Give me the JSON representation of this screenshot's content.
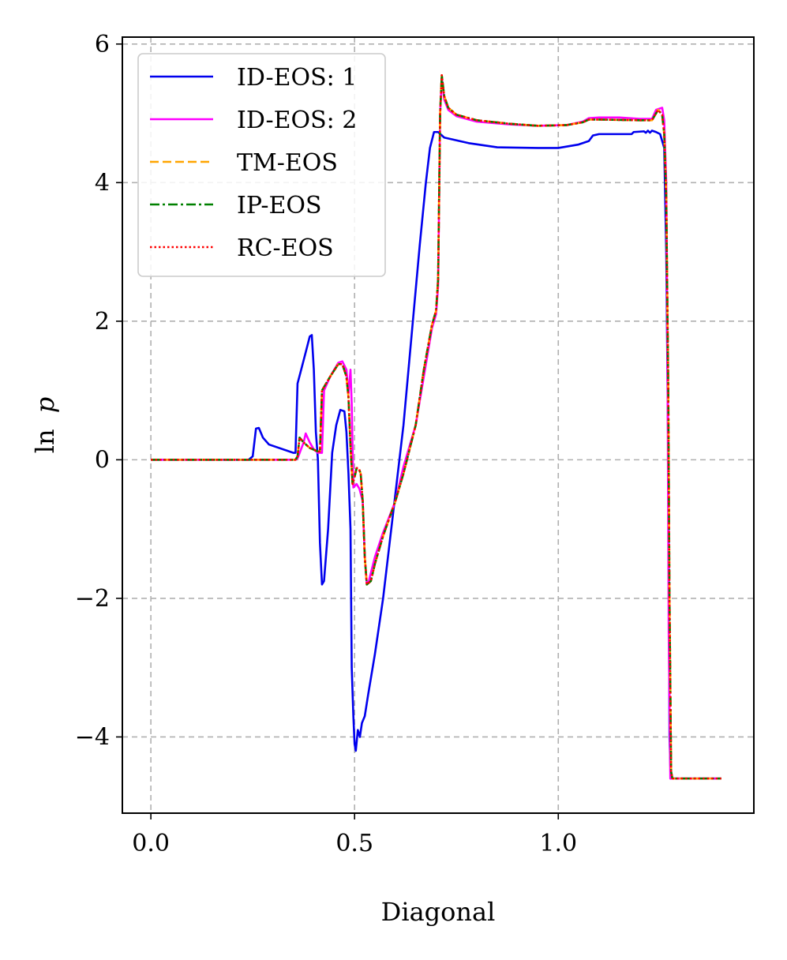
{
  "chart_data": {
    "type": "line",
    "title": "",
    "xlabel": "Diagonal",
    "ylabel_parts": {
      "fn": "ln",
      "var": "p"
    },
    "xlim": [
      -0.07,
      1.48
    ],
    "ylim": [
      -5.1,
      6.1
    ],
    "xticks": [
      0.0,
      0.5,
      1.0
    ],
    "xtick_labels": [
      "0.0",
      "0.5",
      "1.0"
    ],
    "yticks": [
      -4,
      -2,
      0,
      2,
      4,
      6
    ],
    "ytick_labels": [
      "−4",
      "−2",
      "0",
      "2",
      "4",
      "6"
    ],
    "grid": true,
    "legend_position": "upper-left",
    "series": [
      {
        "name": "ID-EOS: 1",
        "color": "#0000ee",
        "style": "solid",
        "points": [
          [
            0,
            0
          ],
          [
            0.24,
            0
          ],
          [
            0.25,
            0.05
          ],
          [
            0.258,
            0.45
          ],
          [
            0.265,
            0.46
          ],
          [
            0.275,
            0.32
          ],
          [
            0.29,
            0.22
          ],
          [
            0.35,
            0.1
          ],
          [
            0.355,
            0.1
          ],
          [
            0.36,
            1.1
          ],
          [
            0.38,
            1.55
          ],
          [
            0.39,
            1.78
          ],
          [
            0.395,
            1.8
          ],
          [
            0.4,
            1.3
          ],
          [
            0.405,
            0.4
          ],
          [
            0.41,
            0.0
          ],
          [
            0.415,
            -1.2
          ],
          [
            0.42,
            -1.8
          ],
          [
            0.425,
            -1.75
          ],
          [
            0.435,
            -1.0
          ],
          [
            0.445,
            0.1
          ],
          [
            0.455,
            0.5
          ],
          [
            0.465,
            0.72
          ],
          [
            0.475,
            0.7
          ],
          [
            0.48,
            0.4
          ],
          [
            0.485,
            -0.2
          ],
          [
            0.49,
            -1.0
          ],
          [
            0.493,
            -3.0
          ],
          [
            0.497,
            -3.7
          ],
          [
            0.5,
            -4.1
          ],
          [
            0.503,
            -4.2
          ],
          [
            0.508,
            -3.9
          ],
          [
            0.513,
            -4.0
          ],
          [
            0.518,
            -3.8
          ],
          [
            0.525,
            -3.7
          ],
          [
            0.533,
            -3.4
          ],
          [
            0.55,
            -2.8
          ],
          [
            0.57,
            -2.0
          ],
          [
            0.59,
            -1.0
          ],
          [
            0.6,
            -0.5
          ],
          [
            0.62,
            0.5
          ],
          [
            0.64,
            1.8
          ],
          [
            0.66,
            3.1
          ],
          [
            0.675,
            4.0
          ],
          [
            0.685,
            4.5
          ],
          [
            0.695,
            4.73
          ],
          [
            0.705,
            4.73
          ],
          [
            0.72,
            4.65
          ],
          [
            0.78,
            4.57
          ],
          [
            0.85,
            4.51
          ],
          [
            0.95,
            4.5
          ],
          [
            1.0,
            4.5
          ],
          [
            1.05,
            4.55
          ],
          [
            1.075,
            4.6
          ],
          [
            1.085,
            4.68
          ],
          [
            1.1,
            4.7
          ],
          [
            1.18,
            4.7
          ],
          [
            1.185,
            4.73
          ],
          [
            1.21,
            4.74
          ],
          [
            1.215,
            4.72
          ],
          [
            1.22,
            4.75
          ],
          [
            1.225,
            4.72
          ],
          [
            1.23,
            4.75
          ],
          [
            1.24,
            4.73
          ],
          [
            1.25,
            4.7
          ],
          [
            1.26,
            4.5
          ],
          [
            1.265,
            3.0
          ],
          [
            1.27,
            0.0
          ],
          [
            1.273,
            -4.0
          ],
          [
            1.276,
            -4.6
          ],
          [
            1.4,
            -4.6
          ]
        ]
      },
      {
        "name": "ID-EOS: 2",
        "color": "#ff00ff",
        "style": "solid",
        "points": [
          [
            0,
            0
          ],
          [
            0.355,
            0
          ],
          [
            0.36,
            0.02
          ],
          [
            0.375,
            0.25
          ],
          [
            0.38,
            0.38
          ],
          [
            0.39,
            0.25
          ],
          [
            0.4,
            0.15
          ],
          [
            0.41,
            0.1
          ],
          [
            0.42,
            0.1
          ],
          [
            0.425,
            1.0
          ],
          [
            0.44,
            1.2
          ],
          [
            0.46,
            1.4
          ],
          [
            0.47,
            1.42
          ],
          [
            0.48,
            1.3
          ],
          [
            0.485,
            0.95
          ],
          [
            0.49,
            1.3
          ],
          [
            0.493,
            0.8
          ],
          [
            0.497,
            -0.4
          ],
          [
            0.505,
            -0.35
          ],
          [
            0.512,
            -0.42
          ],
          [
            0.52,
            -0.6
          ],
          [
            0.525,
            -1.4
          ],
          [
            0.53,
            -1.8
          ],
          [
            0.535,
            -1.75
          ],
          [
            0.55,
            -1.4
          ],
          [
            0.57,
            -1.05
          ],
          [
            0.6,
            -0.6
          ],
          [
            0.62,
            -0.1
          ],
          [
            0.65,
            0.5
          ],
          [
            0.67,
            1.2
          ],
          [
            0.69,
            1.9
          ],
          [
            0.7,
            2.1
          ],
          [
            0.705,
            2.5
          ],
          [
            0.71,
            5.0
          ],
          [
            0.714,
            5.5
          ],
          [
            0.72,
            5.2
          ],
          [
            0.73,
            5.05
          ],
          [
            0.75,
            4.96
          ],
          [
            0.8,
            4.88
          ],
          [
            0.88,
            4.84
          ],
          [
            0.95,
            4.82
          ],
          [
            1.02,
            4.83
          ],
          [
            1.06,
            4.88
          ],
          [
            1.075,
            4.93
          ],
          [
            1.1,
            4.94
          ],
          [
            1.15,
            4.94
          ],
          [
            1.2,
            4.92
          ],
          [
            1.23,
            4.92
          ],
          [
            1.24,
            5.05
          ],
          [
            1.255,
            5.08
          ],
          [
            1.26,
            4.9
          ],
          [
            1.265,
            4.0
          ],
          [
            1.268,
            1.5
          ],
          [
            1.271,
            -2.5
          ],
          [
            1.275,
            -4.6
          ],
          [
            1.4,
            -4.6
          ]
        ]
      },
      {
        "name": "TM-EOS",
        "color": "#ffa500",
        "style": "dashed",
        "points": [
          [
            0,
            0
          ],
          [
            0.355,
            0
          ],
          [
            0.36,
            0.05
          ],
          [
            0.365,
            0.32
          ],
          [
            0.375,
            0.25
          ],
          [
            0.39,
            0.17
          ],
          [
            0.41,
            0.12
          ],
          [
            0.415,
            0.12
          ],
          [
            0.42,
            1.0
          ],
          [
            0.44,
            1.2
          ],
          [
            0.46,
            1.38
          ],
          [
            0.47,
            1.38
          ],
          [
            0.48,
            1.2
          ],
          [
            0.485,
            0.9
          ],
          [
            0.49,
            0.2
          ],
          [
            0.495,
            -0.35
          ],
          [
            0.5,
            -0.25
          ],
          [
            0.505,
            -0.12
          ],
          [
            0.51,
            -0.12
          ],
          [
            0.515,
            -0.2
          ],
          [
            0.52,
            -0.6
          ],
          [
            0.525,
            -1.4
          ],
          [
            0.53,
            -1.8
          ],
          [
            0.54,
            -1.75
          ],
          [
            0.55,
            -1.5
          ],
          [
            0.57,
            -1.1
          ],
          [
            0.6,
            -0.6
          ],
          [
            0.62,
            -0.2
          ],
          [
            0.65,
            0.5
          ],
          [
            0.67,
            1.3
          ],
          [
            0.69,
            1.95
          ],
          [
            0.7,
            2.15
          ],
          [
            0.705,
            2.6
          ],
          [
            0.71,
            5.0
          ],
          [
            0.714,
            5.55
          ],
          [
            0.72,
            5.25
          ],
          [
            0.73,
            5.08
          ],
          [
            0.75,
            4.98
          ],
          [
            0.8,
            4.9
          ],
          [
            0.88,
            4.85
          ],
          [
            0.95,
            4.82
          ],
          [
            1.02,
            4.83
          ],
          [
            1.06,
            4.87
          ],
          [
            1.075,
            4.91
          ],
          [
            1.1,
            4.91
          ],
          [
            1.2,
            4.9
          ],
          [
            1.23,
            4.9
          ],
          [
            1.245,
            5.05
          ],
          [
            1.255,
            4.98
          ],
          [
            1.26,
            4.7
          ],
          [
            1.265,
            3.8
          ],
          [
            1.27,
            1.0
          ],
          [
            1.273,
            -2.0
          ],
          [
            1.277,
            -4.5
          ],
          [
            1.28,
            -4.6
          ],
          [
            1.4,
            -4.6
          ]
        ]
      },
      {
        "name": "IP-EOS",
        "color": "#008000",
        "style": "dashdot",
        "points": [
          [
            0,
            0
          ],
          [
            0.355,
            0
          ],
          [
            0.36,
            0.05
          ],
          [
            0.365,
            0.32
          ],
          [
            0.375,
            0.25
          ],
          [
            0.39,
            0.17
          ],
          [
            0.41,
            0.12
          ],
          [
            0.415,
            0.12
          ],
          [
            0.42,
            1.0
          ],
          [
            0.44,
            1.2
          ],
          [
            0.46,
            1.38
          ],
          [
            0.47,
            1.38
          ],
          [
            0.48,
            1.2
          ],
          [
            0.485,
            0.9
          ],
          [
            0.49,
            0.2
          ],
          [
            0.495,
            -0.35
          ],
          [
            0.5,
            -0.25
          ],
          [
            0.505,
            -0.12
          ],
          [
            0.51,
            -0.12
          ],
          [
            0.515,
            -0.2
          ],
          [
            0.52,
            -0.6
          ],
          [
            0.525,
            -1.4
          ],
          [
            0.53,
            -1.8
          ],
          [
            0.54,
            -1.75
          ],
          [
            0.55,
            -1.5
          ],
          [
            0.57,
            -1.1
          ],
          [
            0.6,
            -0.6
          ],
          [
            0.62,
            -0.2
          ],
          [
            0.65,
            0.5
          ],
          [
            0.67,
            1.3
          ],
          [
            0.69,
            1.95
          ],
          [
            0.7,
            2.15
          ],
          [
            0.705,
            2.6
          ],
          [
            0.71,
            5.0
          ],
          [
            0.714,
            5.55
          ],
          [
            0.72,
            5.25
          ],
          [
            0.73,
            5.08
          ],
          [
            0.75,
            4.98
          ],
          [
            0.8,
            4.9
          ],
          [
            0.88,
            4.85
          ],
          [
            0.95,
            4.82
          ],
          [
            1.02,
            4.83
          ],
          [
            1.06,
            4.87
          ],
          [
            1.075,
            4.91
          ],
          [
            1.1,
            4.91
          ],
          [
            1.2,
            4.9
          ],
          [
            1.23,
            4.9
          ],
          [
            1.245,
            5.05
          ],
          [
            1.255,
            4.98
          ],
          [
            1.26,
            4.7
          ],
          [
            1.265,
            3.8
          ],
          [
            1.27,
            1.0
          ],
          [
            1.273,
            -2.0
          ],
          [
            1.277,
            -4.5
          ],
          [
            1.28,
            -4.6
          ],
          [
            1.4,
            -4.6
          ]
        ]
      },
      {
        "name": "RC-EOS",
        "color": "#ff0000",
        "style": "dotted",
        "points": [
          [
            0,
            0
          ],
          [
            0.355,
            0
          ],
          [
            0.36,
            0.05
          ],
          [
            0.365,
            0.32
          ],
          [
            0.375,
            0.25
          ],
          [
            0.39,
            0.17
          ],
          [
            0.41,
            0.12
          ],
          [
            0.415,
            0.12
          ],
          [
            0.42,
            1.0
          ],
          [
            0.44,
            1.2
          ],
          [
            0.46,
            1.38
          ],
          [
            0.47,
            1.38
          ],
          [
            0.48,
            1.2
          ],
          [
            0.485,
            0.9
          ],
          [
            0.49,
            0.2
          ],
          [
            0.495,
            -0.35
          ],
          [
            0.5,
            -0.25
          ],
          [
            0.505,
            -0.12
          ],
          [
            0.51,
            -0.12
          ],
          [
            0.515,
            -0.2
          ],
          [
            0.52,
            -0.6
          ],
          [
            0.525,
            -1.4
          ],
          [
            0.53,
            -1.8
          ],
          [
            0.54,
            -1.75
          ],
          [
            0.55,
            -1.5
          ],
          [
            0.57,
            -1.1
          ],
          [
            0.6,
            -0.6
          ],
          [
            0.62,
            -0.2
          ],
          [
            0.65,
            0.5
          ],
          [
            0.67,
            1.3
          ],
          [
            0.69,
            1.95
          ],
          [
            0.7,
            2.15
          ],
          [
            0.705,
            2.6
          ],
          [
            0.71,
            5.0
          ],
          [
            0.714,
            5.55
          ],
          [
            0.72,
            5.25
          ],
          [
            0.73,
            5.08
          ],
          [
            0.75,
            4.98
          ],
          [
            0.8,
            4.9
          ],
          [
            0.88,
            4.85
          ],
          [
            0.95,
            4.82
          ],
          [
            1.02,
            4.83
          ],
          [
            1.06,
            4.87
          ],
          [
            1.075,
            4.91
          ],
          [
            1.1,
            4.91
          ],
          [
            1.2,
            4.9
          ],
          [
            1.23,
            4.9
          ],
          [
            1.245,
            5.05
          ],
          [
            1.255,
            4.98
          ],
          [
            1.26,
            4.7
          ],
          [
            1.265,
            3.8
          ],
          [
            1.27,
            1.0
          ],
          [
            1.273,
            -2.0
          ],
          [
            1.277,
            -4.5
          ],
          [
            1.28,
            -4.6
          ],
          [
            1.4,
            -4.6
          ]
        ]
      }
    ]
  }
}
